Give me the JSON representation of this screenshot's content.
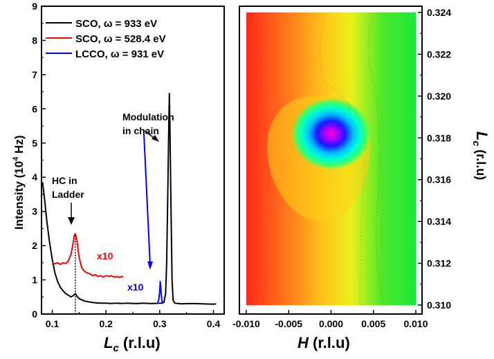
{
  "chart_data": [
    {
      "type": "line",
      "xlabel_main": "L",
      "xlabel_sub": "c",
      "xlabel_unit": " (r.l.u)",
      "ylabel_main": "Intensity (10",
      "ylabel_sup": "4",
      "ylabel_unit": " Hz)",
      "xlim": [
        0.08,
        0.42
      ],
      "ylim": [
        0,
        9
      ],
      "xticks": [
        "0.1",
        "0.2",
        "0.3",
        "0.4"
      ],
      "xtick_values": [
        0.1,
        0.2,
        0.3,
        0.4
      ],
      "yticks": [
        "0",
        "1",
        "2",
        "3",
        "4",
        "5",
        "6",
        "7",
        "8",
        "9"
      ],
      "ytick_values": [
        0,
        1,
        2,
        3,
        4,
        5,
        6,
        7,
        8,
        9
      ],
      "legend_position": "top-left",
      "series": [
        {
          "name": "SCO, ω = 933 eV",
          "color": "#000000",
          "points": [
            [
              0.082,
              3.85
            ],
            [
              0.086,
              3.3
            ],
            [
              0.09,
              2.7
            ],
            [
              0.095,
              2.1
            ],
            [
              0.1,
              1.6
            ],
            [
              0.105,
              1.2
            ],
            [
              0.11,
              0.95
            ],
            [
              0.115,
              0.78
            ],
            [
              0.12,
              0.68
            ],
            [
              0.125,
              0.6
            ],
            [
              0.13,
              0.55
            ],
            [
              0.135,
              0.5
            ],
            [
              0.14,
              0.55
            ],
            [
              0.143,
              0.6
            ],
            [
              0.146,
              0.52
            ],
            [
              0.15,
              0.45
            ],
            [
              0.16,
              0.38
            ],
            [
              0.17,
              0.35
            ],
            [
              0.18,
              0.33
            ],
            [
              0.19,
              0.32
            ],
            [
              0.2,
              0.32
            ],
            [
              0.21,
              0.31
            ],
            [
              0.22,
              0.32
            ],
            [
              0.23,
              0.31
            ],
            [
              0.24,
              0.32
            ],
            [
              0.25,
              0.31
            ],
            [
              0.26,
              0.31
            ],
            [
              0.27,
              0.32
            ],
            [
              0.28,
              0.31
            ],
            [
              0.29,
              0.31
            ],
            [
              0.3,
              0.32
            ],
            [
              0.305,
              0.32
            ],
            [
              0.308,
              0.35
            ],
            [
              0.311,
              0.6
            ],
            [
              0.313,
              1.5
            ],
            [
              0.315,
              3.5
            ],
            [
              0.317,
              5.6
            ],
            [
              0.318,
              6.45
            ],
            [
              0.319,
              5.5
            ],
            [
              0.321,
              3.2
            ],
            [
              0.323,
              1.0
            ],
            [
              0.325,
              0.4
            ],
            [
              0.328,
              0.32
            ],
            [
              0.34,
              0.3
            ],
            [
              0.36,
              0.31
            ],
            [
              0.38,
              0.3
            ],
            [
              0.4,
              0.29
            ],
            [
              0.405,
              0.3
            ]
          ]
        },
        {
          "name": "SCO, ω = 528.4 eV",
          "color": "#ff0000",
          "points": [
            [
              0.1,
              1.5
            ],
            [
              0.105,
              1.47
            ],
            [
              0.11,
              1.5
            ],
            [
              0.115,
              1.45
            ],
            [
              0.12,
              1.5
            ],
            [
              0.125,
              1.48
            ],
            [
              0.13,
              1.55
            ],
            [
              0.135,
              1.75
            ],
            [
              0.138,
              2.0
            ],
            [
              0.141,
              2.3
            ],
            [
              0.143,
              2.35
            ],
            [
              0.146,
              2.15
            ],
            [
              0.15,
              1.65
            ],
            [
              0.155,
              1.35
            ],
            [
              0.16,
              1.25
            ],
            [
              0.165,
              1.2
            ],
            [
              0.17,
              1.18
            ],
            [
              0.175,
              1.12
            ],
            [
              0.18,
              1.15
            ],
            [
              0.185,
              1.1
            ],
            [
              0.19,
              1.12
            ],
            [
              0.195,
              1.08
            ],
            [
              0.2,
              1.12
            ],
            [
              0.205,
              1.1
            ],
            [
              0.21,
              1.12
            ],
            [
              0.215,
              1.08
            ],
            [
              0.22,
              1.1
            ],
            [
              0.225,
              1.07
            ],
            [
              0.23,
              1.1
            ],
            [
              0.232,
              1.08
            ]
          ]
        },
        {
          "name": "LCCO, ω = 931 eV",
          "color": "#0000ff",
          "points": [
            [
              0.296,
              0.35
            ],
            [
              0.298,
              0.4
            ],
            [
              0.3,
              0.65
            ],
            [
              0.301,
              0.95
            ],
            [
              0.302,
              0.75
            ],
            [
              0.304,
              0.4
            ],
            [
              0.306,
              0.3
            ]
          ]
        }
      ],
      "annotations": [
        {
          "text_lines": [
            "Modulation",
            "in chain"
          ]
        },
        {
          "text_lines": [
            "HC in",
            "Ladder"
          ]
        },
        {
          "text": "x10",
          "color": "#ff0000"
        },
        {
          "text": "x10",
          "color": "#0000ff"
        }
      ]
    },
    {
      "type": "heatmap",
      "xlabel_main": "H",
      "xlabel_unit": " (r.l.u)",
      "ylabel_main": "L",
      "ylabel_sub": "c",
      "ylabel_unit": " (r.l.u)",
      "xlim": [
        -0.01,
        0.01
      ],
      "ylim": [
        0.31,
        0.324
      ],
      "xticks": [
        "-0.010",
        "-0.005",
        "0.000",
        "0.005",
        "0.010"
      ],
      "xtick_values": [
        -0.01,
        -0.005,
        0.0,
        0.005,
        0.01
      ],
      "yticks": [
        "0.310",
        "0.312",
        "0.314",
        "0.316",
        "0.318",
        "0.320",
        "0.322",
        "0.324"
      ],
      "ytick_values": [
        0.31,
        0.312,
        0.314,
        0.316,
        0.318,
        0.32,
        0.322,
        0.324
      ],
      "peak_H": 0.0,
      "peak_Lc": 0.3182,
      "colormap": [
        "#ff1a1a",
        "#ff7f1a",
        "#ffff33",
        "#33ff33",
        "#00ffff",
        "#0000ff",
        "#ff00ff"
      ]
    }
  ]
}
